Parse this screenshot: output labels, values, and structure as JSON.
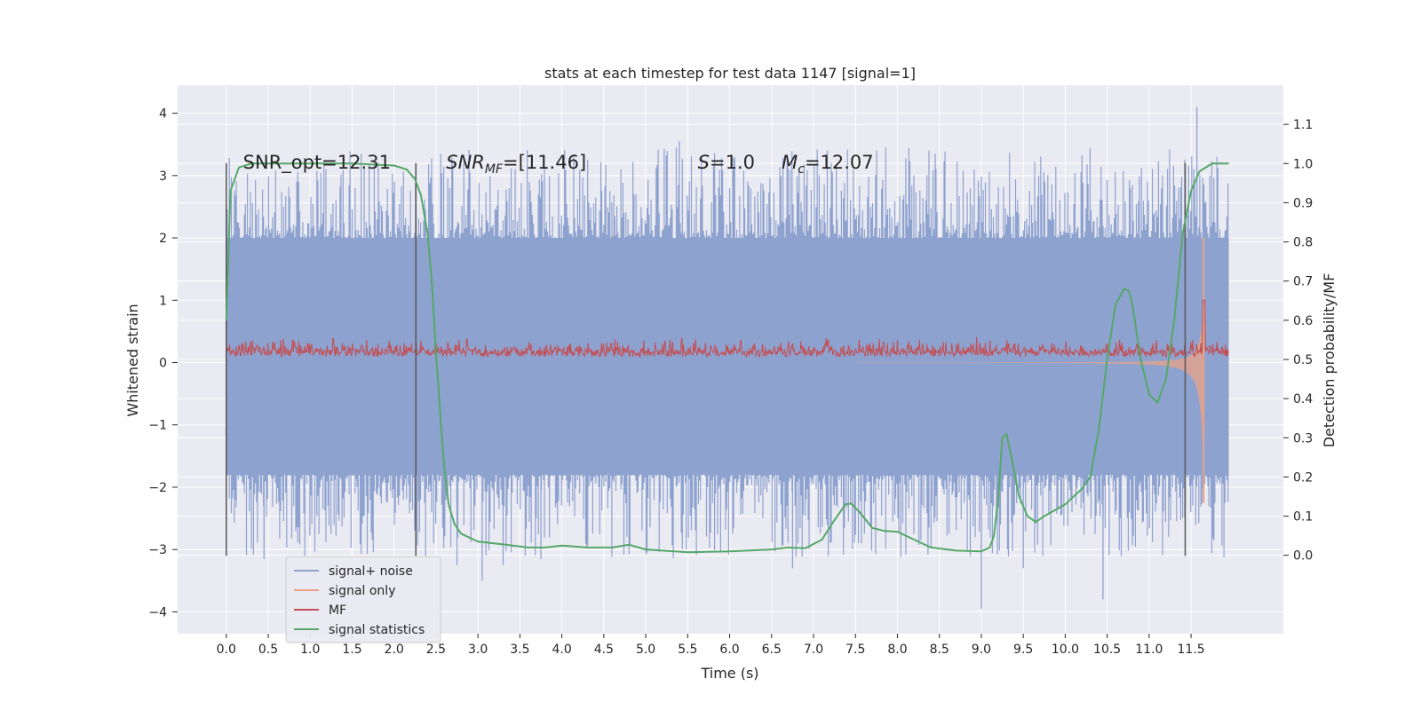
{
  "chart_data": {
    "type": "line",
    "title": "stats at each timestep for test data 1147 [signal=1]",
    "xlabel": "Time (s)",
    "ylabel": "Whitened strain",
    "ylabel_right": "Detection probability/MF",
    "xlim": [
      -0.58,
      12.6
    ],
    "ylim": [
      -4.35,
      4.45
    ],
    "ylim_right": [
      -0.2,
      1.2
    ],
    "x_ticks": [
      "0.0",
      "0.5",
      "1.0",
      "1.5",
      "2.0",
      "2.5",
      "3.0",
      "3.5",
      "4.0",
      "4.5",
      "5.0",
      "5.5",
      "6.0",
      "6.5",
      "7.0",
      "7.5",
      "8.0",
      "8.5",
      "9.0",
      "9.5",
      "10.0",
      "10.5",
      "11.0",
      "11.5"
    ],
    "y_ticks_left": [
      "4",
      "3",
      "2",
      "1",
      "0",
      "−1",
      "−2",
      "−3",
      "−4"
    ],
    "y_ticks_right": [
      "1.1",
      "1.0",
      "0.9",
      "0.8",
      "0.7",
      "0.6",
      "0.5",
      "0.4",
      "0.3",
      "0.2",
      "0.1",
      "0.0"
    ],
    "grid": true,
    "legend_position": "lower-left",
    "annotations": [
      {
        "text": "SNR_opt=12.31",
        "x": 0.2
      },
      {
        "text": "SNR_MF=[11.46]",
        "x": 2.62
      },
      {
        "text": "S=1.0",
        "x": 5.62
      },
      {
        "text": "M_c=12.07",
        "x": 6.62
      }
    ],
    "vlines": [
      0.0,
      2.26,
      11.43
    ],
    "vline_range_left": [
      -3.1,
      3.2
    ],
    "series": [
      {
        "name": "signal+ noise",
        "axis": "left",
        "color": "#8ea2cf",
        "noise_band": [
          -1.8,
          2.0
        ],
        "spike_extremes": [
          {
            "x": 0.45,
            "y": -3.15
          },
          {
            "x": 2.75,
            "y": -3.25
          },
          {
            "x": 3.05,
            "y": -3.5
          },
          {
            "x": 3.3,
            "y": -3.25
          },
          {
            "x": 3.75,
            "y": -3.15
          },
          {
            "x": 5.4,
            "y": 3.55
          },
          {
            "x": 6.75,
            "y": -3.3
          },
          {
            "x": 8.45,
            "y": 3.35
          },
          {
            "x": 9.0,
            "y": -3.95
          },
          {
            "x": 9.5,
            "y": -3.3
          },
          {
            "x": 10.45,
            "y": -3.8
          },
          {
            "x": 11.57,
            "y": 4.1
          }
        ]
      },
      {
        "name": "signal only",
        "axis": "left",
        "color": "#e9a287",
        "chirp_start": 7.5,
        "merger_time": 11.65,
        "amplitude_at_merger": 2.0
      },
      {
        "name": "MF",
        "axis": "left",
        "color": "#c44e52",
        "baseline": 0.15,
        "peak": {
          "x": 11.65,
          "y": 1.0
        }
      },
      {
        "name": "signal statistics",
        "axis": "right",
        "color": "#55a868",
        "points": [
          [
            0.0,
            0.6
          ],
          [
            0.05,
            0.93
          ],
          [
            0.15,
            0.99
          ],
          [
            0.3,
            1.0
          ],
          [
            0.8,
            1.0
          ],
          [
            1.5,
            1.0
          ],
          [
            2.0,
            0.995
          ],
          [
            2.15,
            0.985
          ],
          [
            2.25,
            0.96
          ],
          [
            2.32,
            0.92
          ],
          [
            2.4,
            0.82
          ],
          [
            2.45,
            0.7
          ],
          [
            2.5,
            0.52
          ],
          [
            2.55,
            0.36
          ],
          [
            2.6,
            0.22
          ],
          [
            2.65,
            0.13
          ],
          [
            2.72,
            0.08
          ],
          [
            2.8,
            0.055
          ],
          [
            3.0,
            0.035
          ],
          [
            3.3,
            0.028
          ],
          [
            3.6,
            0.02
          ],
          [
            3.8,
            0.02
          ],
          [
            4.0,
            0.025
          ],
          [
            4.3,
            0.02
          ],
          [
            4.6,
            0.02
          ],
          [
            4.8,
            0.027
          ],
          [
            5.0,
            0.015
          ],
          [
            5.5,
            0.008
          ],
          [
            6.0,
            0.01
          ],
          [
            6.5,
            0.015
          ],
          [
            6.7,
            0.02
          ],
          [
            6.9,
            0.018
          ],
          [
            7.1,
            0.04
          ],
          [
            7.25,
            0.09
          ],
          [
            7.38,
            0.13
          ],
          [
            7.45,
            0.132
          ],
          [
            7.55,
            0.11
          ],
          [
            7.7,
            0.07
          ],
          [
            7.85,
            0.062
          ],
          [
            8.0,
            0.06
          ],
          [
            8.2,
            0.04
          ],
          [
            8.4,
            0.02
          ],
          [
            8.7,
            0.012
          ],
          [
            9.0,
            0.01
          ],
          [
            9.1,
            0.02
          ],
          [
            9.15,
            0.05
          ],
          [
            9.2,
            0.14
          ],
          [
            9.25,
            0.3
          ],
          [
            9.3,
            0.31
          ],
          [
            9.35,
            0.26
          ],
          [
            9.45,
            0.15
          ],
          [
            9.55,
            0.1
          ],
          [
            9.65,
            0.085
          ],
          [
            9.75,
            0.1
          ],
          [
            10.0,
            0.13
          ],
          [
            10.2,
            0.17
          ],
          [
            10.3,
            0.2
          ],
          [
            10.4,
            0.32
          ],
          [
            10.5,
            0.5
          ],
          [
            10.6,
            0.64
          ],
          [
            10.7,
            0.68
          ],
          [
            10.76,
            0.675
          ],
          [
            10.8,
            0.64
          ],
          [
            10.9,
            0.5
          ],
          [
            11.0,
            0.41
          ],
          [
            11.1,
            0.39
          ],
          [
            11.2,
            0.45
          ],
          [
            11.3,
            0.6
          ],
          [
            11.4,
            0.82
          ],
          [
            11.5,
            0.93
          ],
          [
            11.6,
            0.98
          ],
          [
            11.75,
            1.0
          ],
          [
            11.95,
            1.0
          ]
        ]
      }
    ]
  }
}
